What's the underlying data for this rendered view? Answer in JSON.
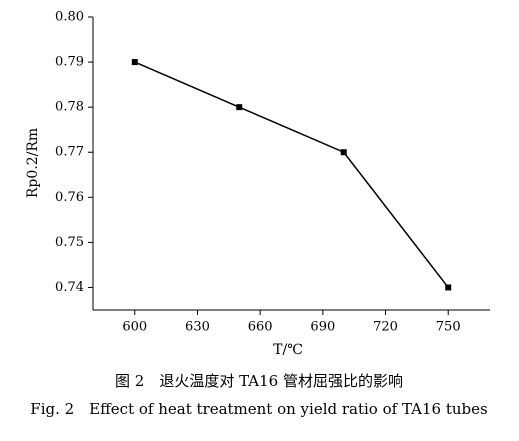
{
  "chart_data": {
    "type": "line",
    "title": "图 2　退火温度对 TA16 管材屈强比的影响",
    "subtitle": "Fig. 2　Effect of heat treatment on yield ratio of TA16 tubes",
    "xlabel": "T/℃",
    "ylabel": "Rp0.2/Rm",
    "x": [
      600,
      650,
      700,
      750
    ],
    "series": [
      {
        "name": "Rp0.2/Rm",
        "color": "#000000",
        "values": [
          0.79,
          0.78,
          0.77,
          0.74
        ]
      }
    ],
    "xlim": [
      580,
      770
    ],
    "xticks": [
      600,
      630,
      660,
      690,
      720,
      750
    ],
    "ylim": [
      0.735,
      0.8
    ],
    "yticks": [
      {
        "value": 0.8,
        "label": "0.80"
      },
      0.79,
      0.78,
      0.77,
      0.76,
      0.75,
      0.74
    ],
    "grid": false
  }
}
